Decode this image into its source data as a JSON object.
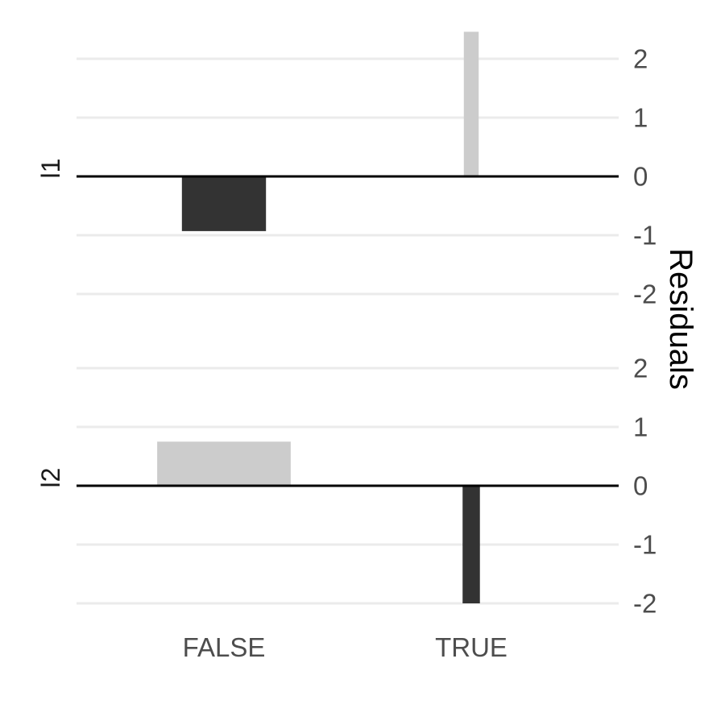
{
  "chart_data": {
    "type": "bar",
    "ylabel": "Residuals",
    "categories": [
      "FALSE",
      "TRUE"
    ],
    "yticks": [
      -2,
      -1,
      0,
      1,
      2
    ],
    "grid": true,
    "colors": {
      "negative": "#333333",
      "positive": "#cccccc",
      "grid": "#ebebeb",
      "zero_line": "#000000"
    },
    "facets": [
      {
        "label": "l1",
        "ylim": [
          -2.0,
          2.5
        ],
        "bars": [
          {
            "category": "FALSE",
            "value": -0.93,
            "width": 0.34,
            "color": "#333333"
          },
          {
            "category": "TRUE",
            "value": 2.46,
            "width": 0.06,
            "color": "#cccccc"
          }
        ]
      },
      {
        "label": "l2",
        "ylim": [
          -2.0,
          2.0
        ],
        "bars": [
          {
            "category": "FALSE",
            "value": 0.75,
            "width": 0.54,
            "color": "#cccccc"
          },
          {
            "category": "TRUE",
            "value": -2.0,
            "width": 0.07,
            "color": "#333333"
          }
        ]
      }
    ]
  }
}
